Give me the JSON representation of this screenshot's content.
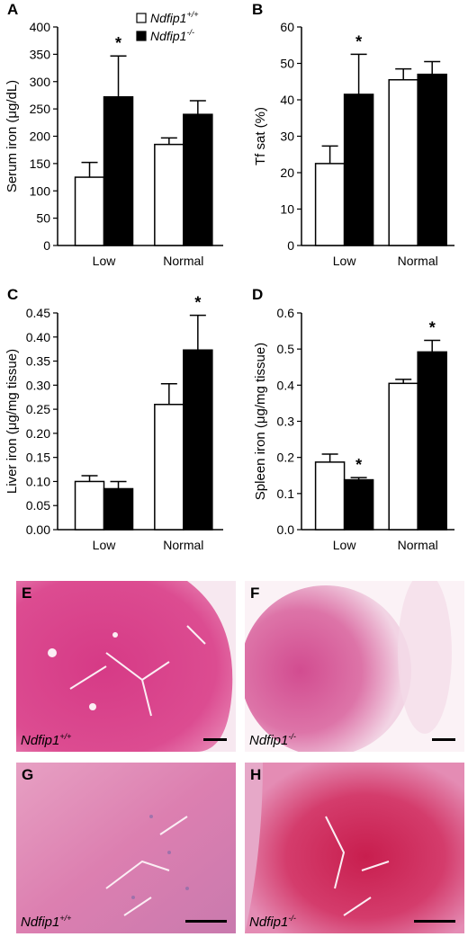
{
  "legend": {
    "wt": {
      "name": "Ndfip1",
      "sup": "+/+"
    },
    "ko": {
      "name": "Ndfip1",
      "sup": "-/-"
    }
  },
  "colors": {
    "wt_fill": "#ffffff",
    "ko_fill": "#000000",
    "stroke": "#000000"
  },
  "chart_data": [
    {
      "panel": "A",
      "type": "bar",
      "categories": [
        "Low",
        "Normal"
      ],
      "ylabel": "Serum iron (μg/dL)",
      "ylim": [
        0,
        400
      ],
      "yticks": [
        "0",
        "50",
        "100",
        "150",
        "200",
        "250",
        "300",
        "350",
        "400"
      ],
      "series": [
        {
          "name": "Ndfip1+/+",
          "values": [
            125,
            185
          ],
          "errors": [
            27,
            12
          ]
        },
        {
          "name": "Ndfip1-/-",
          "values": [
            272,
            240
          ],
          "errors": [
            75,
            25
          ]
        }
      ],
      "significance": [
        "*",
        ""
      ]
    },
    {
      "panel": "B",
      "type": "bar",
      "categories": [
        "Low",
        "Normal"
      ],
      "ylabel": "Tf sat (%)",
      "ylim": [
        0,
        60
      ],
      "yticks": [
        "0",
        "10",
        "20",
        "30",
        "40",
        "50",
        "60"
      ],
      "series": [
        {
          "name": "Ndfip1+/+",
          "values": [
            22.5,
            45.5
          ],
          "errors": [
            4.8,
            3
          ]
        },
        {
          "name": "Ndfip1-/-",
          "values": [
            41.5,
            47
          ],
          "errors": [
            11,
            3.5
          ]
        }
      ],
      "significance": [
        "*",
        ""
      ]
    },
    {
      "panel": "C",
      "type": "bar",
      "categories": [
        "Low",
        "Normal"
      ],
      "ylabel": "Liver iron (μg/mg tissue)",
      "ylim": [
        0,
        0.45
      ],
      "yticks": [
        "0.00",
        "0.05",
        "0.10",
        "0.15",
        "0.20",
        "0.25",
        "0.30",
        "0.35",
        "0.40",
        "0.45"
      ],
      "series": [
        {
          "name": "Ndfip1+/+",
          "values": [
            0.1,
            0.26
          ],
          "errors": [
            0.012,
            0.043
          ]
        },
        {
          "name": "Ndfip1-/-",
          "values": [
            0.085,
            0.373
          ],
          "errors": [
            0.015,
            0.072
          ]
        }
      ],
      "significance": [
        "",
        "*"
      ]
    },
    {
      "panel": "D",
      "type": "bar",
      "categories": [
        "Low",
        "Normal"
      ],
      "ylabel": "Spleen iron (μg/mg tissue)",
      "ylim": [
        0,
        0.6
      ],
      "yticks": [
        "0.0",
        "0.1",
        "0.2",
        "0.3",
        "0.4",
        "0.5",
        "0.6"
      ],
      "series": [
        {
          "name": "Ndfip1+/+",
          "values": [
            0.187,
            0.405
          ],
          "errors": [
            0.022,
            0.011
          ]
        },
        {
          "name": "Ndfip1-/-",
          "values": [
            0.138,
            0.492
          ],
          "errors": [
            0.006,
            0.032
          ]
        }
      ],
      "significance": [
        "*",
        "*"
      ]
    }
  ],
  "micrographs": [
    {
      "panel": "E",
      "genotype": "Ndfip1",
      "sup": "+/+"
    },
    {
      "panel": "F",
      "genotype": "Ndfip1",
      "sup": "-/-"
    },
    {
      "panel": "G",
      "genotype": "Ndfip1",
      "sup": "+/+"
    },
    {
      "panel": "H",
      "genotype": "Ndfip1",
      "sup": "-/-"
    }
  ]
}
